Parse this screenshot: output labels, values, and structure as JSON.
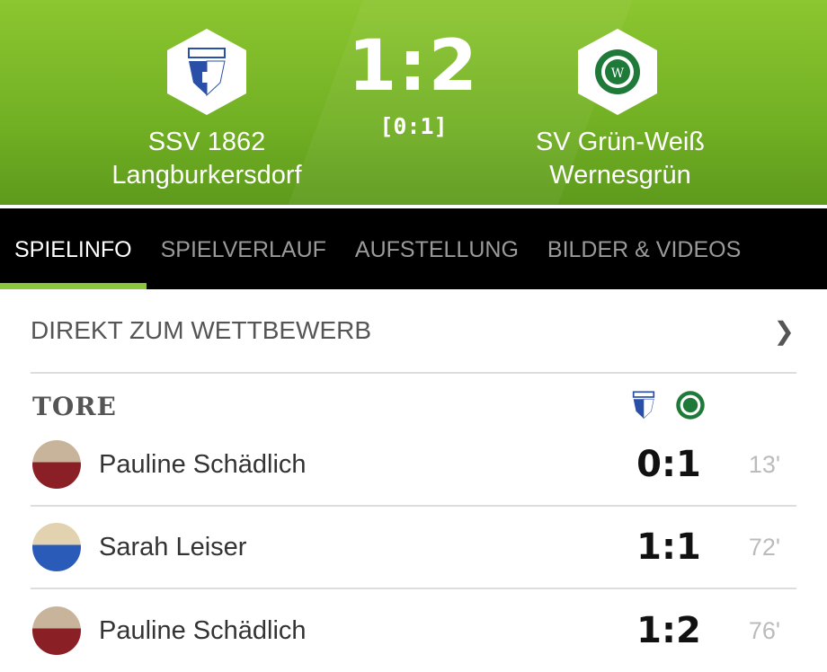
{
  "match": {
    "home": {
      "name_line1": "SSV 1862",
      "name_line2": "Langburkersdorf"
    },
    "away": {
      "name_line1": "SV Grün-Weiß",
      "name_line2": "Wernesgrün"
    },
    "score": "1:2",
    "halftime": "[0:1]"
  },
  "tabs": [
    {
      "label": "SPIELINFO",
      "active": true
    },
    {
      "label": "SPIELVERLAUF"
    },
    {
      "label": "AUFSTELLUNG"
    },
    {
      "label": "BILDER & VIDEOS"
    }
  ],
  "competition_link": {
    "label": "DIREKT ZUM WETTBEWERB",
    "icon": "chevron-right-icon"
  },
  "goals": {
    "title": "TORE",
    "items": [
      {
        "player": "Pauline Schädlich",
        "score": "0:1",
        "minute": "13'",
        "team": "away"
      },
      {
        "player": "Sarah Leiser",
        "score": "1:1",
        "minute": "72'",
        "team": "home"
      },
      {
        "player": "Pauline Schädlich",
        "score": "1:2",
        "minute": "76'",
        "team": "away"
      }
    ]
  },
  "colors": {
    "accent": "#8cc63f",
    "header_green": "#72b024",
    "home_blue": "#2a4fa8",
    "away_green": "#1f7a3a"
  }
}
